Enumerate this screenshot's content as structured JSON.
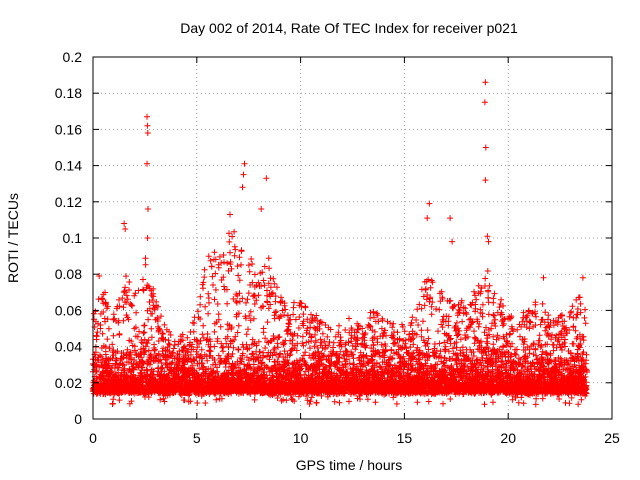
{
  "chart_data": {
    "type": "scatter",
    "title": "Day 002 of 2014, Rate Of TEC Index for receiver p021",
    "xlabel": "GPS time / hours",
    "ylabel": "ROTI / TECUs",
    "xlim": [
      0,
      25
    ],
    "ylim": [
      0,
      0.2
    ],
    "x_ticks": [
      0,
      5,
      10,
      15,
      20,
      25
    ],
    "y_ticks": [
      0,
      0.02,
      0.04,
      0.06,
      0.08,
      0.1,
      0.12,
      0.14,
      0.16,
      0.18,
      0.2
    ],
    "grid": true,
    "legend": "none",
    "marker": "plus",
    "series_color": "#ff0000",
    "x_data_range": [
      0,
      23.8
    ],
    "baseline_band": [
      0.008,
      0.045
    ],
    "activity_envelope": [
      [
        0.0,
        0.06
      ],
      [
        0.5,
        0.07
      ],
      [
        1.0,
        0.055
      ],
      [
        1.5,
        0.08
      ],
      [
        2.0,
        0.07
      ],
      [
        2.5,
        0.09
      ],
      [
        3.0,
        0.065
      ],
      [
        3.5,
        0.05
      ],
      [
        4.0,
        0.045
      ],
      [
        4.5,
        0.045
      ],
      [
        5.0,
        0.06
      ],
      [
        5.5,
        0.085
      ],
      [
        6.0,
        0.09
      ],
      [
        6.5,
        0.1
      ],
      [
        7.0,
        0.1
      ],
      [
        7.5,
        0.09
      ],
      [
        8.0,
        0.08
      ],
      [
        8.5,
        0.085
      ],
      [
        9.0,
        0.065
      ],
      [
        9.5,
        0.06
      ],
      [
        10.0,
        0.065
      ],
      [
        10.5,
        0.06
      ],
      [
        11.0,
        0.055
      ],
      [
        11.5,
        0.05
      ],
      [
        12.0,
        0.05
      ],
      [
        12.5,
        0.055
      ],
      [
        13.0,
        0.05
      ],
      [
        13.5,
        0.06
      ],
      [
        14.0,
        0.055
      ],
      [
        14.5,
        0.05
      ],
      [
        15.0,
        0.05
      ],
      [
        15.5,
        0.055
      ],
      [
        16.0,
        0.08
      ],
      [
        16.5,
        0.07
      ],
      [
        17.0,
        0.07
      ],
      [
        17.5,
        0.06
      ],
      [
        18.0,
        0.065
      ],
      [
        18.5,
        0.07
      ],
      [
        19.0,
        0.08
      ],
      [
        19.5,
        0.065
      ],
      [
        20.0,
        0.06
      ],
      [
        20.5,
        0.055
      ],
      [
        21.0,
        0.06
      ],
      [
        21.5,
        0.065
      ],
      [
        22.0,
        0.055
      ],
      [
        22.5,
        0.055
      ],
      [
        23.0,
        0.06
      ],
      [
        23.5,
        0.065
      ],
      [
        23.8,
        0.06
      ]
    ],
    "spikes": [
      {
        "x": 0.3,
        "y": 0.079
      },
      {
        "x": 1.5,
        "y": 0.108
      },
      {
        "x": 1.55,
        "y": 0.105
      },
      {
        "x": 2.6,
        "y": 0.167
      },
      {
        "x": 2.62,
        "y": 0.162
      },
      {
        "x": 2.64,
        "y": 0.158
      },
      {
        "x": 2.6,
        "y": 0.141
      },
      {
        "x": 2.65,
        "y": 0.116
      },
      {
        "x": 2.63,
        "y": 0.1
      },
      {
        "x": 6.6,
        "y": 0.113
      },
      {
        "x": 7.3,
        "y": 0.141
      },
      {
        "x": 7.25,
        "y": 0.135
      },
      {
        "x": 7.2,
        "y": 0.128
      },
      {
        "x": 8.35,
        "y": 0.133
      },
      {
        "x": 8.1,
        "y": 0.116
      },
      {
        "x": 16.2,
        "y": 0.119
      },
      {
        "x": 16.1,
        "y": 0.111
      },
      {
        "x": 17.2,
        "y": 0.111
      },
      {
        "x": 17.3,
        "y": 0.098
      },
      {
        "x": 18.9,
        "y": 0.186
      },
      {
        "x": 18.88,
        "y": 0.175
      },
      {
        "x": 18.92,
        "y": 0.15
      },
      {
        "x": 18.9,
        "y": 0.132
      },
      {
        "x": 19.0,
        "y": 0.101
      },
      {
        "x": 19.05,
        "y": 0.098
      },
      {
        "x": 21.7,
        "y": 0.078
      },
      {
        "x": 23.6,
        "y": 0.078
      }
    ]
  }
}
